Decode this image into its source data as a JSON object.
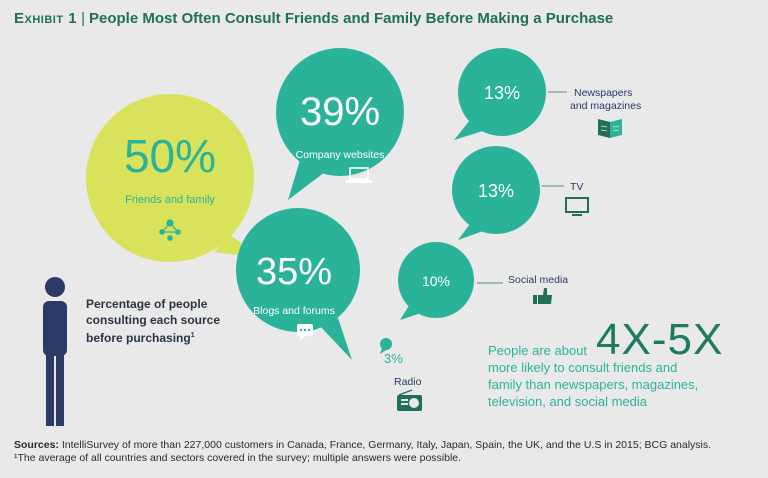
{
  "header": {
    "label": "Exhibit 1",
    "title": "People Most Often Consult Friends and Family Before Making a Purchase"
  },
  "colors": {
    "teal": "#2bb39a",
    "lime": "#d8e25a",
    "dark_green": "#1f6f5a",
    "figure": "#2b3a66"
  },
  "chart_data": {
    "type": "bubble",
    "title": "People Most Often Consult Friends and Family Before Making a Purchase",
    "series": [
      {
        "label": "Friends and family",
        "value": 50,
        "display": "50%",
        "icon": "people-network-icon"
      },
      {
        "label": "Company websites",
        "value": 39,
        "display": "39%",
        "icon": "laptop-icon"
      },
      {
        "label": "Blogs and forums",
        "value": 35,
        "display": "35%",
        "icon": "chat-bubble-icon"
      },
      {
        "label": "Newspapers and magazines",
        "value": 13,
        "display": "13%",
        "icon": "open-book-icon"
      },
      {
        "label": "TV",
        "value": 13,
        "display": "13%",
        "icon": "tv-icon"
      },
      {
        "label": "Social media",
        "value": 10,
        "display": "10%",
        "icon": "thumbs-up-icon"
      },
      {
        "label": "Radio",
        "value": 3,
        "display": "3%",
        "icon": "radio-icon"
      }
    ]
  },
  "labels": {
    "newspapers_line1": "Newspapers",
    "newspapers_line2": "and magazines"
  },
  "note": {
    "text": "Percentage of people consulting each source before purchasing",
    "footnote_mark": "1"
  },
  "stat": {
    "big": "4X-5X",
    "line1": "People are about",
    "line2": "more likely to consult friends and",
    "line3": "family than newspapers, magazines,",
    "line4": "television, and social media"
  },
  "footer": {
    "sources_label": "Sources:",
    "sources_text": "IntelliSurvey of more than 227,000 customers in Canada, France, Germany, Italy, Japan, Spain, the UK, and the U.S in 2015; BCG analysis.",
    "footnote": "¹The average of all countries and sectors covered in the survey; multiple answers were possible."
  }
}
